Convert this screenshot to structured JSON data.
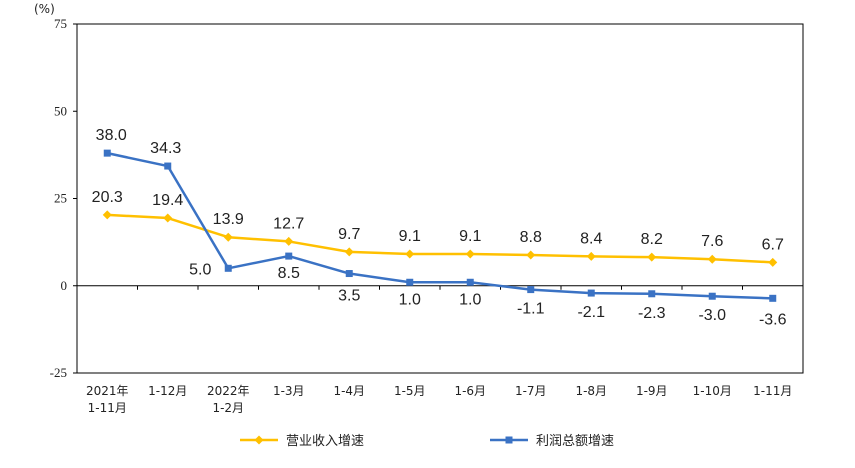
{
  "chart_data": {
    "type": "line",
    "unit_label": "(%)",
    "ylim": [
      -25,
      75
    ],
    "yticks": [
      -25,
      0,
      25,
      50,
      75
    ],
    "categories": [
      "2021年\n1-11月",
      "1-12月",
      "2022年\n1-2月",
      "1-3月",
      "1-4月",
      "1-5月",
      "1-6月",
      "1-7月",
      "1-8月",
      "1-9月",
      "1-10月",
      "1-11月"
    ],
    "series": [
      {
        "name": "营业收入增速",
        "color": "#FFC000",
        "marker": "diamond",
        "values": [
          20.3,
          19.4,
          13.9,
          12.7,
          9.7,
          9.1,
          9.1,
          8.8,
          8.4,
          8.2,
          7.6,
          6.7
        ],
        "labels": [
          "20.3",
          "19.4",
          "13.9",
          "12.7",
          "9.7",
          "9.1",
          "9.1",
          "8.8",
          "8.4",
          "8.2",
          "7.6",
          "6.7"
        ]
      },
      {
        "name": "利润总额增速",
        "color": "#3A72C4",
        "marker": "square",
        "values": [
          38.0,
          34.3,
          5.0,
          8.5,
          3.5,
          1.0,
          1.0,
          -1.1,
          -2.1,
          -2.3,
          -3.0,
          -3.6
        ],
        "labels": [
          "38.0",
          "34.3",
          "5.0",
          "8.5",
          "3.5",
          "1.0",
          "1.0",
          "-1.1",
          "-2.1",
          "-2.3",
          "-3.0",
          "-3.6"
        ]
      }
    ],
    "legend_position": "bottom",
    "grid": false
  }
}
